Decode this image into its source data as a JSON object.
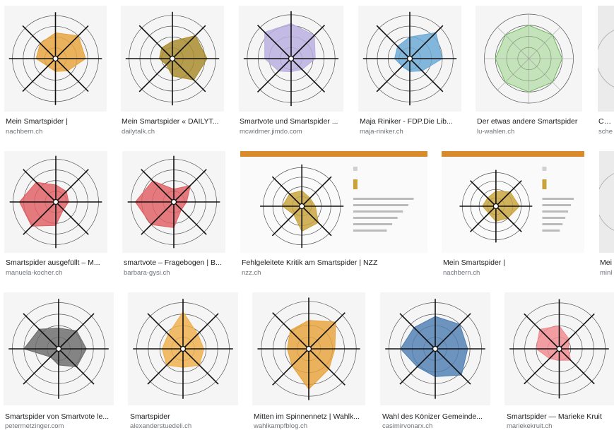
{
  "results": [
    {
      "title": "Mein Smartspider |",
      "source": "nachbern.ch",
      "color": "#e8a33c",
      "values": [
        0.6,
        0.75,
        0.7,
        0.4,
        0.3,
        0.25,
        0.45,
        0.5
      ],
      "style": "spider"
    },
    {
      "title": "Mein Smartspider « DAILYT...",
      "source": "dailytalk.ch",
      "color": "#a88a2a",
      "values": [
        0.4,
        0.75,
        0.8,
        0.7,
        0.4,
        0.2,
        0.3,
        0.35
      ],
      "style": "spider"
    },
    {
      "title": "Smartvote und Smartspider ...",
      "source": "mcwidmer.jimdo.com",
      "color": "#b9aee0",
      "values": [
        0.8,
        0.75,
        0.55,
        0.35,
        0.3,
        0.4,
        0.6,
        0.85
      ],
      "style": "spider"
    },
    {
      "title": "Maja Riniker - FDP.Die Lib...",
      "source": "maja-riniker.ch",
      "color": "#6aa8d6",
      "values": [
        0.5,
        0.85,
        0.75,
        0.4,
        0.3,
        0.25,
        0.35,
        0.4
      ],
      "style": "spider"
    },
    {
      "title": "Der etwas andere Smartspider",
      "source": "lu-wahlen.ch",
      "color": "#9ad48a",
      "values": [
        0.75,
        0.75,
        0.75,
        0.75,
        0.75,
        0.75,
        0.75,
        0.75
      ],
      "style": "octagon"
    },
    {
      "title": "Chris",
      "source": "sche",
      "color": "#cccccc",
      "values": [
        0.5,
        0.5,
        0.5,
        0.5,
        0.5,
        0.5,
        0.5,
        0.5
      ],
      "style": "partial"
    },
    {
      "title": "Smartspider ausgefüllt – M...",
      "source": "manuela-kocher.ch",
      "color": "#e05f63",
      "values": [
        0.4,
        0.35,
        0.3,
        0.25,
        0.55,
        0.8,
        0.85,
        0.65
      ],
      "style": "spider"
    },
    {
      "title": "smartvote – Fragebogen | B...",
      "source": "barbara-gysi.ch",
      "color": "#e05f63",
      "values": [
        0.3,
        0.55,
        0.3,
        0.25,
        0.6,
        0.75,
        0.9,
        0.7
      ],
      "style": "spider"
    },
    {
      "title": "Fehlgeleitete Kritik am Smartspider | NZZ",
      "source": "nzz.ch",
      "color": "#c9a33a",
      "values": [
        0.4,
        0.3,
        0.35,
        0.6,
        0.65,
        0.3,
        0.5,
        0.45
      ],
      "style": "panel"
    },
    {
      "title": "Mein Smartspider |",
      "source": "nachbern.ch",
      "color": "#c9a33a",
      "values": [
        0.45,
        0.6,
        0.7,
        0.5,
        0.45,
        0.3,
        0.4,
        0.35
      ],
      "style": "panel"
    },
    {
      "title": "Mei",
      "source": "minl",
      "color": "#cccccc",
      "values": [
        0.5,
        0.5,
        0.5,
        0.5,
        0.5,
        0.5,
        0.5,
        0.5
      ],
      "style": "partial"
    },
    {
      "title": "Smartspider von Smartvote le...",
      "source": "petermetzinger.com",
      "color": "#6b6b6b",
      "values": [
        0.45,
        0.55,
        0.6,
        0.55,
        0.35,
        0.25,
        0.75,
        0.6
      ],
      "style": "spider"
    },
    {
      "title": "Smartspider",
      "source": "alexanderstuedeli.ch",
      "color": "#f0b04a",
      "values": [
        0.8,
        0.45,
        0.45,
        0.5,
        0.4,
        0.5,
        0.45,
        0.45
      ],
      "style": "spider"
    },
    {
      "title": "Mitten im Spinnennetz | Wahlk...",
      "source": "wahlkampfblog.ch",
      "color": "#e8a33c",
      "values": [
        0.6,
        0.8,
        0.55,
        0.6,
        0.85,
        0.5,
        0.45,
        0.55
      ],
      "style": "spider"
    },
    {
      "title": "Wahl des Könizer Gemeinde...",
      "source": "casimirvonarx.ch",
      "color": "#4f7fb3",
      "values": [
        0.7,
        0.75,
        0.7,
        0.8,
        0.6,
        0.55,
        0.75,
        0.65
      ],
      "style": "spider"
    },
    {
      "title": "Smartspider — Marieke Kruit",
      "source": "mariekekruit.ch",
      "color": "#f08a90",
      "values": [
        0.5,
        0.3,
        0.2,
        0.35,
        0.25,
        0.3,
        0.5,
        0.6
      ],
      "style": "spider"
    }
  ]
}
